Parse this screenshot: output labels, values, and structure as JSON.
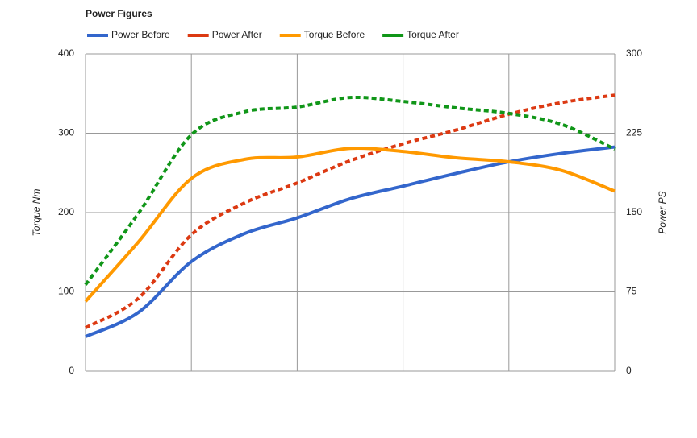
{
  "chart_data": {
    "type": "line",
    "title": "Power Figures",
    "categories": [
      null,
      null,
      null,
      null,
      null,
      null,
      null,
      null,
      null,
      null,
      null
    ],
    "ylabel": "Torque Nm",
    "y2label": "Power PS",
    "ylim": [
      0,
      400
    ],
    "yticks": [
      0,
      100,
      200,
      300,
      400
    ],
    "y2lim": [
      0,
      300
    ],
    "y2ticks": [
      0,
      75,
      150,
      225,
      300
    ],
    "grid": true,
    "legend": "top",
    "series": [
      {
        "name": "Power Before",
        "color": "#3366cc",
        "axis": "y2",
        "line_style": "solid",
        "values": [
          32.7,
          55.6,
          103.6,
          130,
          145,
          163,
          175,
          187,
          198,
          206,
          212
        ]
      },
      {
        "name": "Power After",
        "color": "#dc3912",
        "axis": "y2",
        "line_style": "dashed",
        "values": [
          41,
          69,
          129,
          159,
          178,
          199,
          215,
          228,
          243,
          254,
          261
        ]
      },
      {
        "name": "Torque Before",
        "color": "#ff9900",
        "line_style": "solid",
        "values": [
          88,
          163,
          243,
          267,
          270,
          281,
          277,
          269,
          264,
          253,
          227
        ]
      },
      {
        "name": "Torque After",
        "color": "#109618",
        "line_style": "dashed",
        "values": [
          109,
          199,
          298,
          327,
          333,
          345,
          340,
          332,
          325,
          311,
          280
        ]
      }
    ]
  }
}
